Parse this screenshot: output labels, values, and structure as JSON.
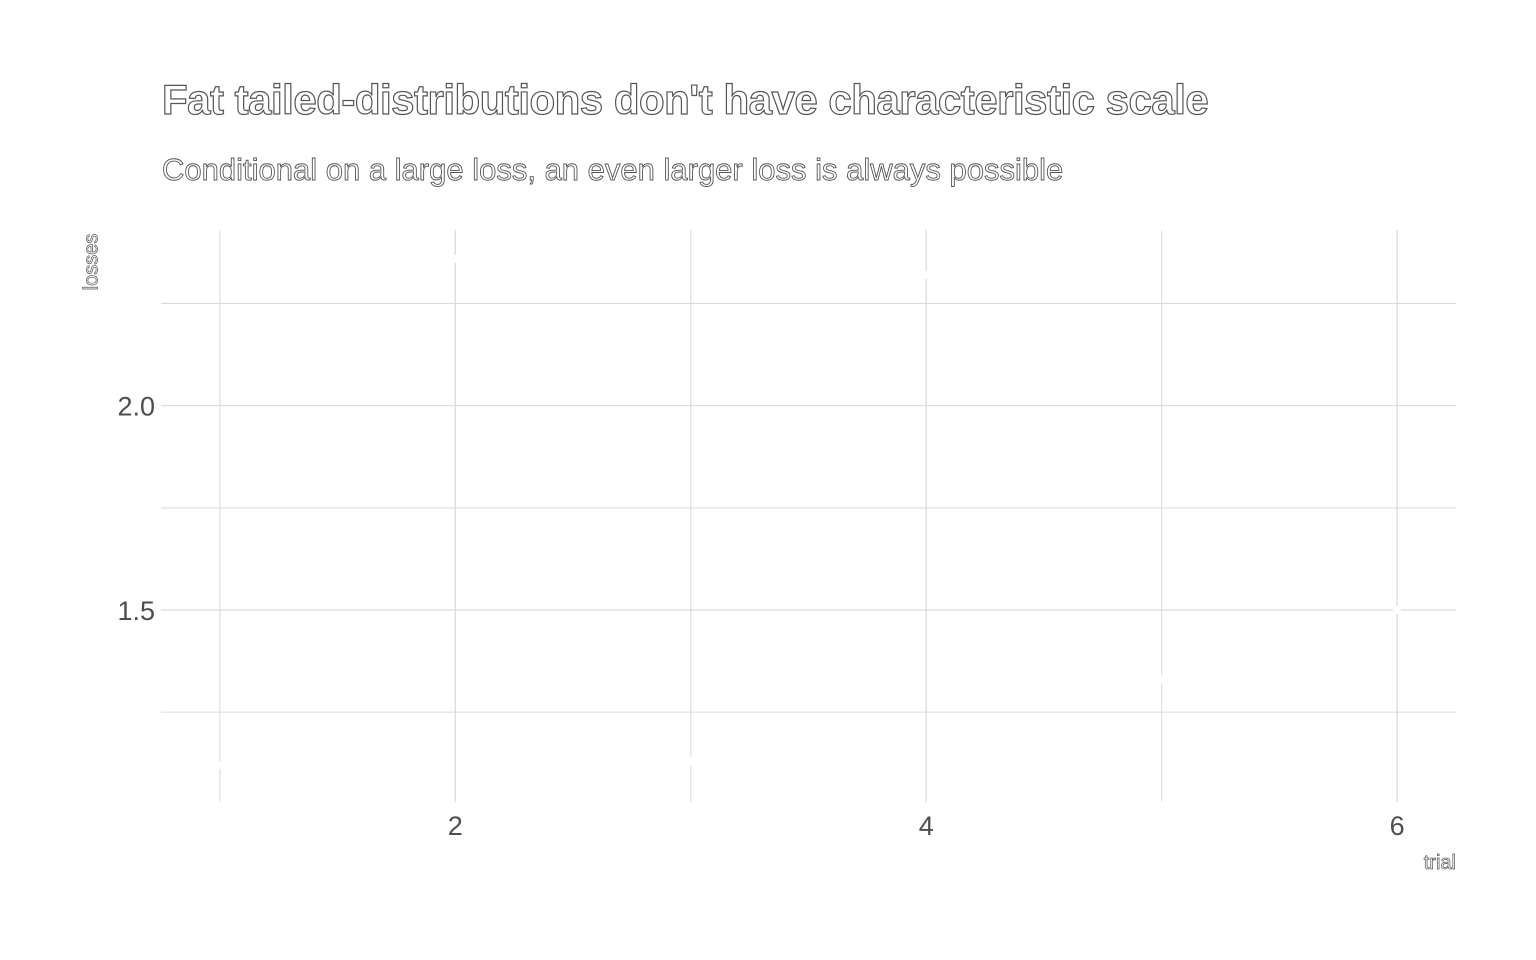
{
  "chart_data": {
    "type": "scatter",
    "title": "Fat tailed-distributions don't have characteristic scale",
    "subtitle": "Conditional on a large loss, an even larger loss is always possible",
    "xlabel": "trial",
    "ylabel": "losses",
    "x": [
      1,
      2,
      3,
      4,
      5,
      6
    ],
    "y": [
      1.12,
      2.36,
      1.13,
      2.32,
      1.33,
      1.5
    ],
    "xlim": [
      0.75,
      6.25
    ],
    "ylim": [
      1.03,
      2.43
    ],
    "x_ticks": [
      2,
      4,
      6
    ],
    "x_tick_labels": [
      "2",
      "4",
      "6"
    ],
    "y_ticks": [
      1.5,
      2.0
    ],
    "y_tick_labels": [
      "1.5",
      "2.0"
    ],
    "x_minor_ticks": [
      1,
      3,
      5
    ],
    "y_minor_ticks": [
      1.25,
      1.75,
      2.25
    ],
    "grid": true,
    "legend": "none",
    "colors": {
      "grid": "#d9d9d9",
      "tick_label": "#4d4d4d",
      "point": "#ffffff",
      "text_outline": "#555555"
    }
  }
}
